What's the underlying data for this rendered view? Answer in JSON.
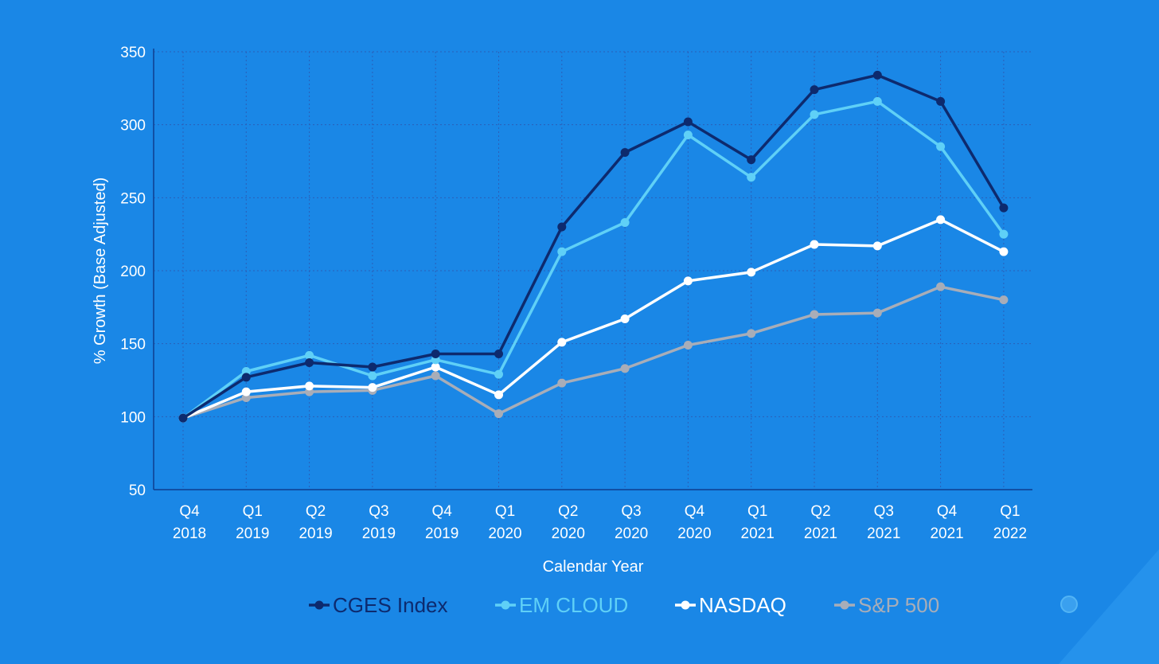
{
  "chart_data": {
    "type": "line",
    "title": "",
    "xlabel": "Calendar Year",
    "ylabel": "% Growth (Base Adjusted)",
    "ylim": [
      50,
      350
    ],
    "yticks": [
      50,
      100,
      150,
      200,
      250,
      300,
      350
    ],
    "grid": true,
    "legend_position": "bottom",
    "categories": [
      [
        "Q4",
        "2018"
      ],
      [
        "Q1",
        "2019"
      ],
      [
        "Q2",
        "2019"
      ],
      [
        "Q3",
        "2019"
      ],
      [
        "Q4",
        "2019"
      ],
      [
        "Q1",
        "2020"
      ],
      [
        "Q2",
        "2020"
      ],
      [
        "Q3",
        "2020"
      ],
      [
        "Q4",
        "2020"
      ],
      [
        "Q1",
        "2021"
      ],
      [
        "Q2",
        "2021"
      ],
      [
        "Q3",
        "2021"
      ],
      [
        "Q4",
        "2021"
      ],
      [
        "Q1",
        "2022"
      ]
    ],
    "series": [
      {
        "name": "S&P 500",
        "color": "#a8adb8",
        "values": [
          99,
          113,
          117,
          118,
          128,
          102,
          123,
          133,
          149,
          157,
          170,
          171,
          189,
          180
        ]
      },
      {
        "name": "NASDAQ",
        "color": "#ffffff",
        "values": [
          99,
          117,
          121,
          120,
          134,
          115,
          151,
          167,
          193,
          199,
          218,
          217,
          235,
          213
        ]
      },
      {
        "name": "EM CLOUD",
        "color": "#5fd0f7",
        "values": [
          99,
          131,
          142,
          128,
          139,
          129,
          213,
          233,
          293,
          264,
          307,
          316,
          285,
          225
        ]
      },
      {
        "name": "CGES Index",
        "color": "#0d2a6e",
        "values": [
          99,
          127,
          137,
          134,
          143,
          143,
          230,
          281,
          302,
          276,
          324,
          334,
          316,
          243
        ]
      }
    ],
    "legend": [
      {
        "name": "CGES Index",
        "color": "#0d2a6e"
      },
      {
        "name": "EM CLOUD",
        "color": "#5fd0f7"
      },
      {
        "name": "NASDAQ",
        "color": "#ffffff"
      },
      {
        "name": "S&P 500",
        "color": "#a8adb8"
      }
    ]
  }
}
